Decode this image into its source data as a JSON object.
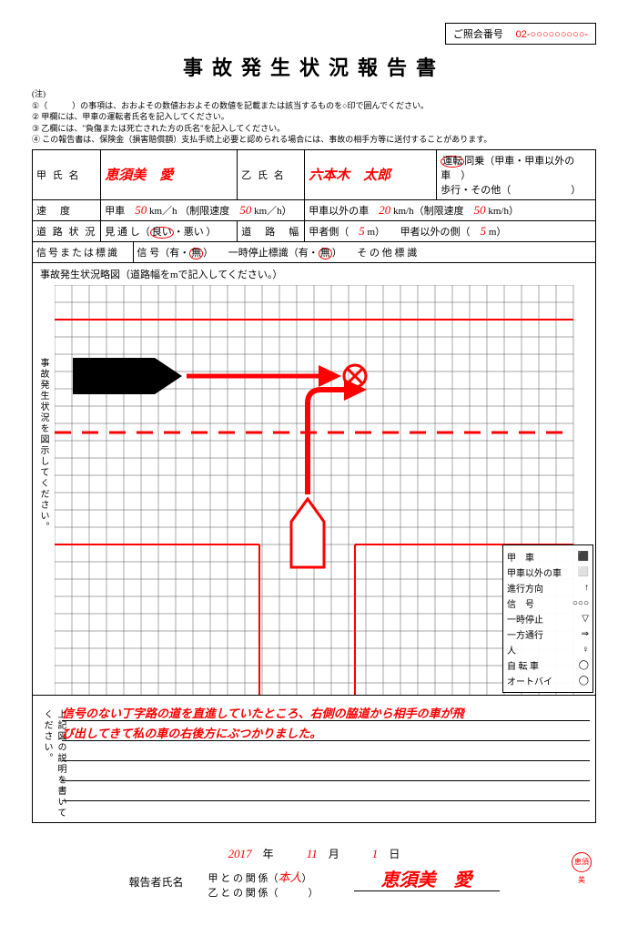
{
  "ref": {
    "label": "ご照会番号",
    "value": "02-○○○○○○○○○-"
  },
  "title": "事故発生状況報告書",
  "notes": {
    "head": "(注)",
    "n1": "①（　　　）の事項は、おおよその数値おおよその数値を記載または該当するものを○印で囲んでください。",
    "n2": "② 甲欄には、甲車の運転者氏名を記入してください。",
    "n3": "③ 乙欄には、\"負傷または死亡された方の氏名\"を記入してください。",
    "n4": "④ この報告書は、保険金（損害賠償額）支払手続上必要と認められる場合には、事故の相手方等に送付することがあります。"
  },
  "rowA": {
    "kouLabel": "甲 氏 名",
    "kouName": "恵須美　愛",
    "otsuLabel": "乙 氏 名",
    "otsuName": "六本木　太郎",
    "status": "運転",
    "status2": "同乗（甲車・甲車以外の車　）",
    "status3": "歩行・その他（　　　　　　）"
  },
  "rowB": {
    "label": "速　度",
    "kou": "甲車",
    "kouV": "50",
    "unit": "km／h",
    "limLbl": "（制限速度",
    "kouLim": "50",
    "unit2": "km／h）",
    "other": "甲車以外の車",
    "otherV": "20",
    "otherLim": "50"
  },
  "rowC": {
    "label": "道 路 状 況",
    "vis": "見 通 し（",
    "good": "良い",
    "sep": "・悪い ）",
    "width": "道　路　幅",
    "kouSide": "甲者側（",
    "kouW": "5",
    "m": "m）",
    "otherSide": "甲者以外の側（",
    "otherW": "5"
  },
  "rowD": {
    "label": "信号または標識",
    "sig": "信 号（有・",
    "sigV": "無",
    "sigEnd": "）",
    "stop": "一時停止標識（有・",
    "stopV": "無",
    "stopEnd": "）",
    "other": "そ の 他 標 識"
  },
  "diagram": {
    "title": "事故発生状況略図（道路幅をmで記入してください。）",
    "sideLabel1": "事故発生状況を図示してください︒",
    "gridCols": 30,
    "gridRows": 24,
    "cellSize": 19,
    "colors": {
      "grid": "#555",
      "road": "#f00",
      "vehicle": "#000",
      "arrow": "#f00"
    }
  },
  "legend": {
    "items": [
      {
        "l": "甲　車",
        "sym": "pentagon-black"
      },
      {
        "l": "甲車以外の車",
        "sym": "pentagon-white"
      },
      {
        "l": "進行方向",
        "sym": "arrow"
      },
      {
        "l": "信　号",
        "sym": "signal"
      },
      {
        "l": "一時停止",
        "sym": "stop"
      },
      {
        "l": "一方通行",
        "sym": "oneway"
      },
      {
        "l": "人",
        "sym": "person"
      },
      {
        "l": "自 転 車",
        "sym": "bike"
      },
      {
        "l": "オートバイ",
        "sym": "moto"
      }
    ]
  },
  "desc": {
    "sideLabel": "上記図の説明を書いてください︒",
    "line1": "信号のない丁字路の道を直進していたところ、右側の脇道から相手の車が飛",
    "line2": "び出してきて私の車の右後方にぶつかりました。"
  },
  "footer": {
    "year": "2017",
    "yLbl": "年",
    "month": "11",
    "mLbl": "月",
    "day": "1",
    "dLbl": "日",
    "rep": "報告者氏名",
    "rel1": "甲 と の 関 係（",
    "rel1v": "本人",
    "relEnd": "）",
    "rel2": "乙 と の 関 係（　　　）",
    "sig": "恵須美　愛",
    "seal": "恵須美"
  }
}
